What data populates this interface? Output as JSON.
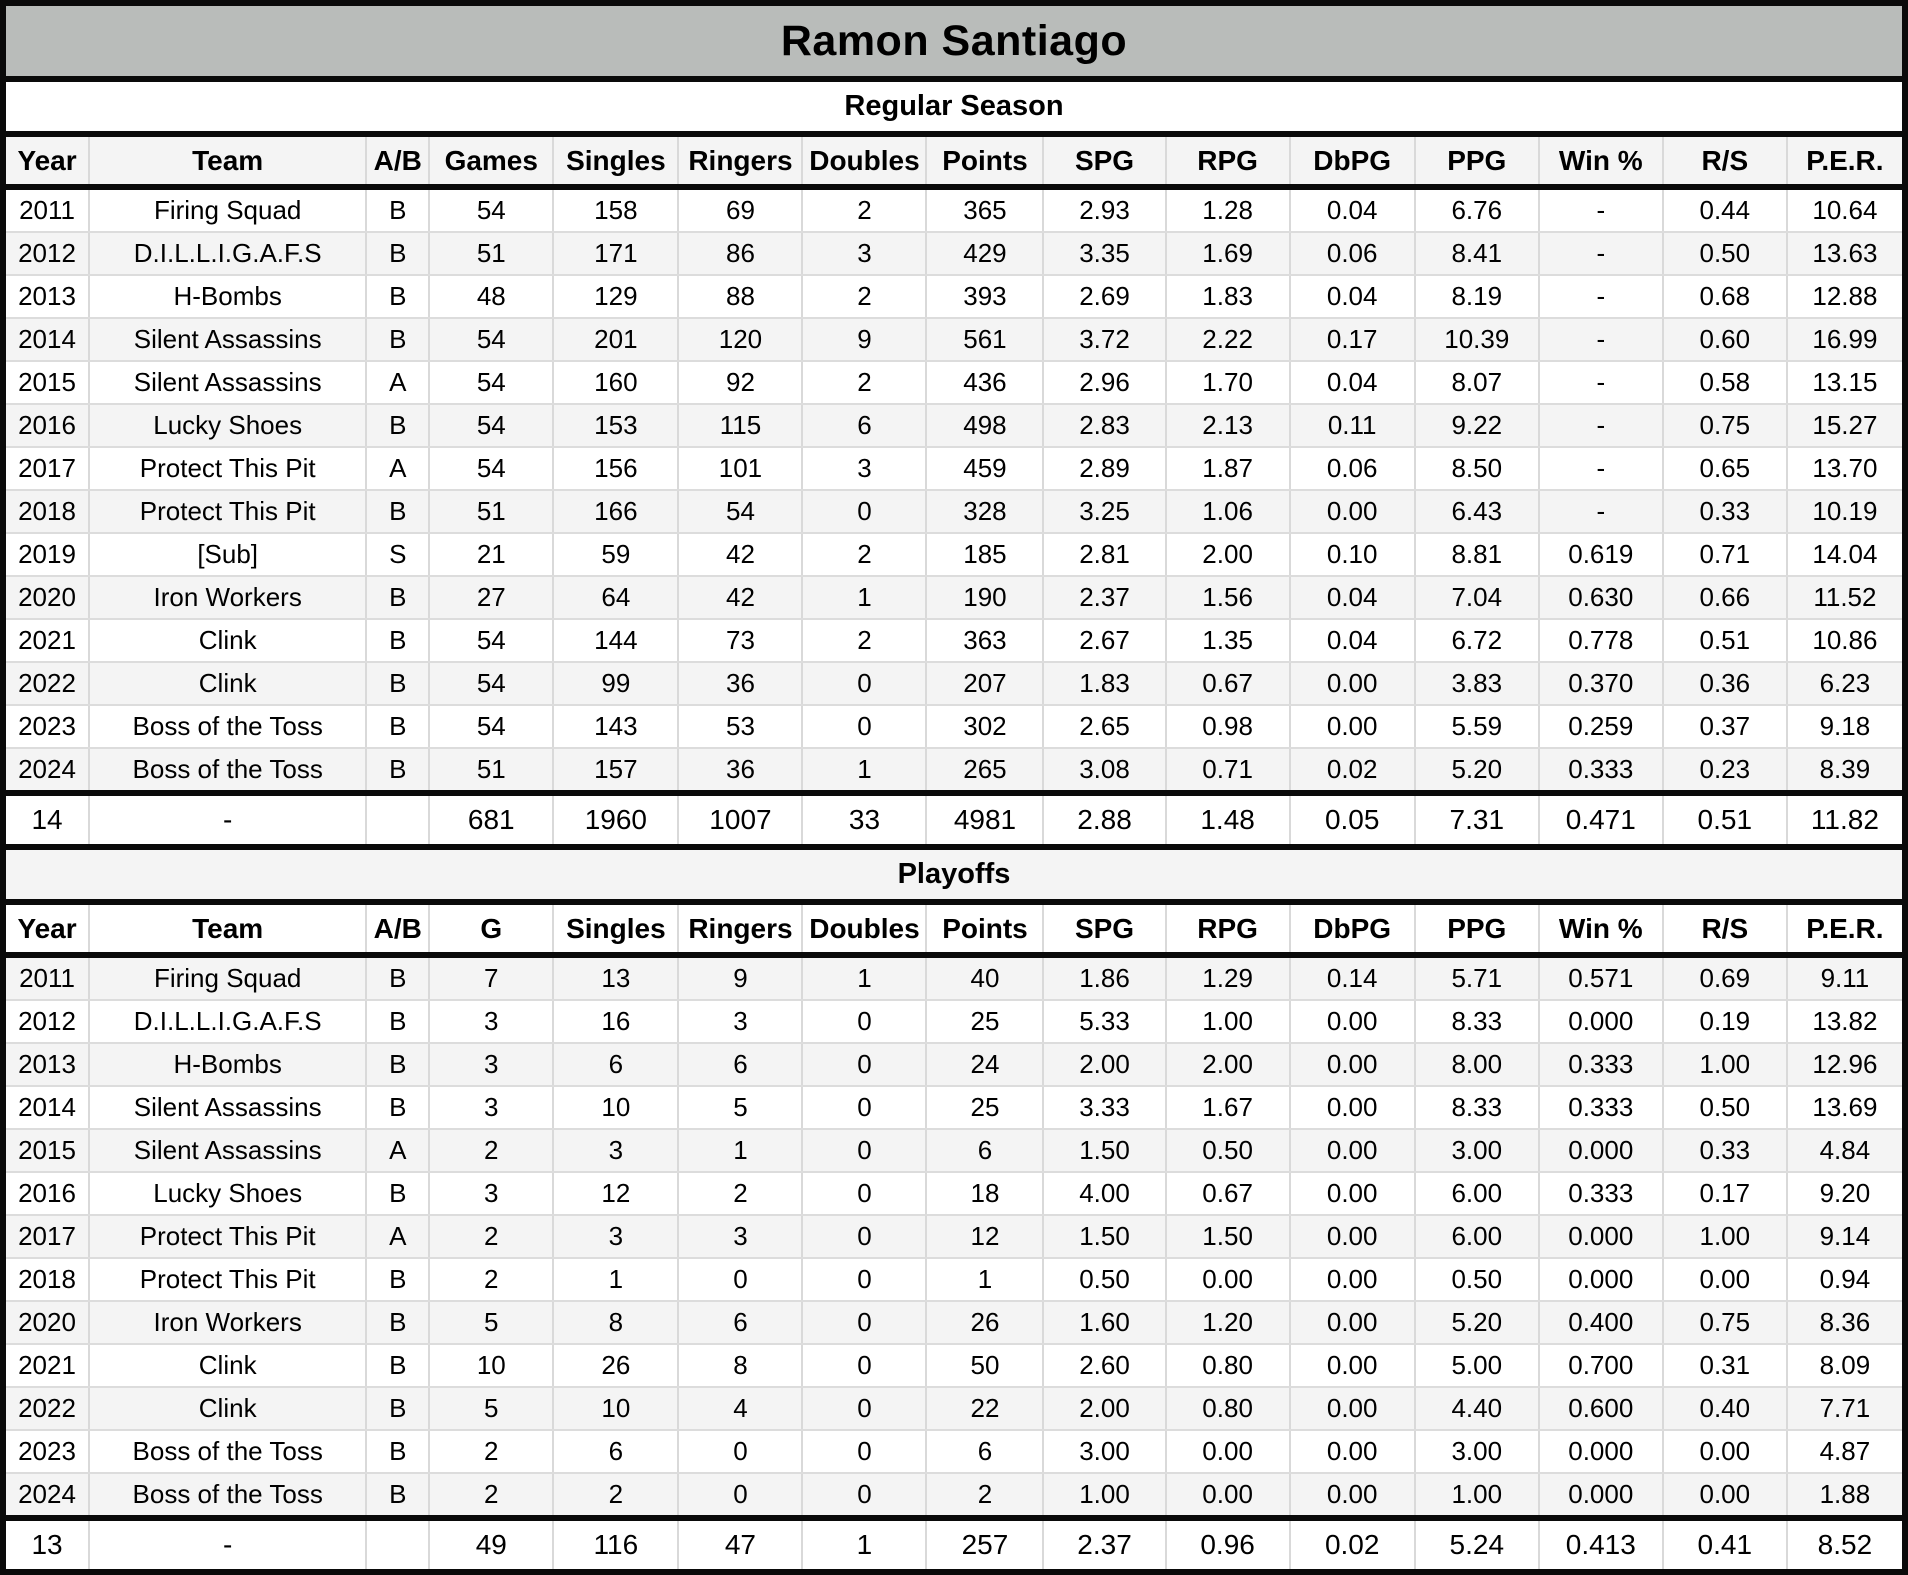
{
  "title": "Ramon Santiago",
  "colors": {
    "title_background": "#b9bcba",
    "band_gray": "#f4f4f4",
    "band_white": "#ffffff",
    "border_black": "#0a0a0a",
    "grid_line": "#d9d9d9"
  },
  "column_keys": [
    "year",
    "team",
    "ab",
    "games",
    "singles",
    "ringers",
    "doubles",
    "points",
    "spg",
    "rpg",
    "dbpg",
    "ppg",
    "win-pct",
    "rs",
    "per"
  ],
  "column_widths_pct": [
    4.38,
    14.62,
    3.32,
    6.54,
    6.6,
    6.54,
    6.54,
    6.17,
    6.44,
    6.54,
    6.6,
    6.54,
    6.54,
    6.54,
    6.07
  ],
  "sections": [
    {
      "label": "Regular Season",
      "columns": [
        "Year",
        "Team",
        "A/B",
        "Games",
        "Singles",
        "Ringers",
        "Doubles",
        "Points",
        "SPG",
        "RPG",
        "DbPG",
        "PPG",
        "Win %",
        "R/S",
        "P.E.R."
      ],
      "rows": [
        [
          "2011",
          "Firing Squad",
          "B",
          "54",
          "158",
          "69",
          "2",
          "365",
          "2.93",
          "1.28",
          "0.04",
          "6.76",
          "-",
          "0.44",
          "10.64"
        ],
        [
          "2012",
          "D.I.L.L.I.G.A.F.S",
          "B",
          "51",
          "171",
          "86",
          "3",
          "429",
          "3.35",
          "1.69",
          "0.06",
          "8.41",
          "-",
          "0.50",
          "13.63"
        ],
        [
          "2013",
          "H-Bombs",
          "B",
          "48",
          "129",
          "88",
          "2",
          "393",
          "2.69",
          "1.83",
          "0.04",
          "8.19",
          "-",
          "0.68",
          "12.88"
        ],
        [
          "2014",
          "Silent Assassins",
          "B",
          "54",
          "201",
          "120",
          "9",
          "561",
          "3.72",
          "2.22",
          "0.17",
          "10.39",
          "-",
          "0.60",
          "16.99"
        ],
        [
          "2015",
          "Silent Assassins",
          "A",
          "54",
          "160",
          "92",
          "2",
          "436",
          "2.96",
          "1.70",
          "0.04",
          "8.07",
          "-",
          "0.58",
          "13.15"
        ],
        [
          "2016",
          "Lucky Shoes",
          "B",
          "54",
          "153",
          "115",
          "6",
          "498",
          "2.83",
          "2.13",
          "0.11",
          "9.22",
          "-",
          "0.75",
          "15.27"
        ],
        [
          "2017",
          "Protect This Pit",
          "A",
          "54",
          "156",
          "101",
          "3",
          "459",
          "2.89",
          "1.87",
          "0.06",
          "8.50",
          "-",
          "0.65",
          "13.70"
        ],
        [
          "2018",
          "Protect This Pit",
          "B",
          "51",
          "166",
          "54",
          "0",
          "328",
          "3.25",
          "1.06",
          "0.00",
          "6.43",
          "-",
          "0.33",
          "10.19"
        ],
        [
          "2019",
          "[Sub]",
          "S",
          "21",
          "59",
          "42",
          "2",
          "185",
          "2.81",
          "2.00",
          "0.10",
          "8.81",
          "0.619",
          "0.71",
          "14.04"
        ],
        [
          "2020",
          "Iron Workers",
          "B",
          "27",
          "64",
          "42",
          "1",
          "190",
          "2.37",
          "1.56",
          "0.04",
          "7.04",
          "0.630",
          "0.66",
          "11.52"
        ],
        [
          "2021",
          "Clink",
          "B",
          "54",
          "144",
          "73",
          "2",
          "363",
          "2.67",
          "1.35",
          "0.04",
          "6.72",
          "0.778",
          "0.51",
          "10.86"
        ],
        [
          "2022",
          "Clink",
          "B",
          "54",
          "99",
          "36",
          "0",
          "207",
          "1.83",
          "0.67",
          "0.00",
          "3.83",
          "0.370",
          "0.36",
          "6.23"
        ],
        [
          "2023",
          "Boss of the Toss",
          "B",
          "54",
          "143",
          "53",
          "0",
          "302",
          "2.65",
          "0.98",
          "0.00",
          "5.59",
          "0.259",
          "0.37",
          "9.18"
        ],
        [
          "2024",
          "Boss of the Toss",
          "B",
          "51",
          "157",
          "36",
          "1",
          "265",
          "3.08",
          "0.71",
          "0.02",
          "5.20",
          "0.333",
          "0.23",
          "8.39"
        ]
      ],
      "totals": [
        "14",
        "-",
        "",
        "681",
        "1960",
        "1007",
        "33",
        "4981",
        "2.88",
        "1.48",
        "0.05",
        "7.31",
        "0.471",
        "0.51",
        "11.82"
      ]
    },
    {
      "label": "Playoffs",
      "columns": [
        "Year",
        "Team",
        "A/B",
        "G",
        "Singles",
        "Ringers",
        "Doubles",
        "Points",
        "SPG",
        "RPG",
        "DbPG",
        "PPG",
        "Win %",
        "R/S",
        "P.E.R."
      ],
      "rows": [
        [
          "2011",
          "Firing Squad",
          "B",
          "7",
          "13",
          "9",
          "1",
          "40",
          "1.86",
          "1.29",
          "0.14",
          "5.71",
          "0.571",
          "0.69",
          "9.11"
        ],
        [
          "2012",
          "D.I.L.L.I.G.A.F.S",
          "B",
          "3",
          "16",
          "3",
          "0",
          "25",
          "5.33",
          "1.00",
          "0.00",
          "8.33",
          "0.000",
          "0.19",
          "13.82"
        ],
        [
          "2013",
          "H-Bombs",
          "B",
          "3",
          "6",
          "6",
          "0",
          "24",
          "2.00",
          "2.00",
          "0.00",
          "8.00",
          "0.333",
          "1.00",
          "12.96"
        ],
        [
          "2014",
          "Silent Assassins",
          "B",
          "3",
          "10",
          "5",
          "0",
          "25",
          "3.33",
          "1.67",
          "0.00",
          "8.33",
          "0.333",
          "0.50",
          "13.69"
        ],
        [
          "2015",
          "Silent Assassins",
          "A",
          "2",
          "3",
          "1",
          "0",
          "6",
          "1.50",
          "0.50",
          "0.00",
          "3.00",
          "0.000",
          "0.33",
          "4.84"
        ],
        [
          "2016",
          "Lucky Shoes",
          "B",
          "3",
          "12",
          "2",
          "0",
          "18",
          "4.00",
          "0.67",
          "0.00",
          "6.00",
          "0.333",
          "0.17",
          "9.20"
        ],
        [
          "2017",
          "Protect This Pit",
          "A",
          "2",
          "3",
          "3",
          "0",
          "12",
          "1.50",
          "1.50",
          "0.00",
          "6.00",
          "0.000",
          "1.00",
          "9.14"
        ],
        [
          "2018",
          "Protect This Pit",
          "B",
          "2",
          "1",
          "0",
          "0",
          "1",
          "0.50",
          "0.00",
          "0.00",
          "0.50",
          "0.000",
          "0.00",
          "0.94"
        ],
        [
          "2020",
          "Iron Workers",
          "B",
          "5",
          "8",
          "6",
          "0",
          "26",
          "1.60",
          "1.20",
          "0.00",
          "5.20",
          "0.400",
          "0.75",
          "8.36"
        ],
        [
          "2021",
          "Clink",
          "B",
          "10",
          "26",
          "8",
          "0",
          "50",
          "2.60",
          "0.80",
          "0.00",
          "5.00",
          "0.700",
          "0.31",
          "8.09"
        ],
        [
          "2022",
          "Clink",
          "B",
          "5",
          "10",
          "4",
          "0",
          "22",
          "2.00",
          "0.80",
          "0.00",
          "4.40",
          "0.600",
          "0.40",
          "7.71"
        ],
        [
          "2023",
          "Boss of the Toss",
          "B",
          "2",
          "6",
          "0",
          "0",
          "6",
          "3.00",
          "0.00",
          "0.00",
          "3.00",
          "0.000",
          "0.00",
          "4.87"
        ],
        [
          "2024",
          "Boss of the Toss",
          "B",
          "2",
          "2",
          "0",
          "0",
          "2",
          "1.00",
          "0.00",
          "0.00",
          "1.00",
          "0.000",
          "0.00",
          "1.88"
        ]
      ],
      "totals": [
        "13",
        "-",
        "",
        "49",
        "116",
        "47",
        "1",
        "257",
        "2.37",
        "0.96",
        "0.02",
        "5.24",
        "0.413",
        "0.41",
        "8.52"
      ]
    }
  ]
}
